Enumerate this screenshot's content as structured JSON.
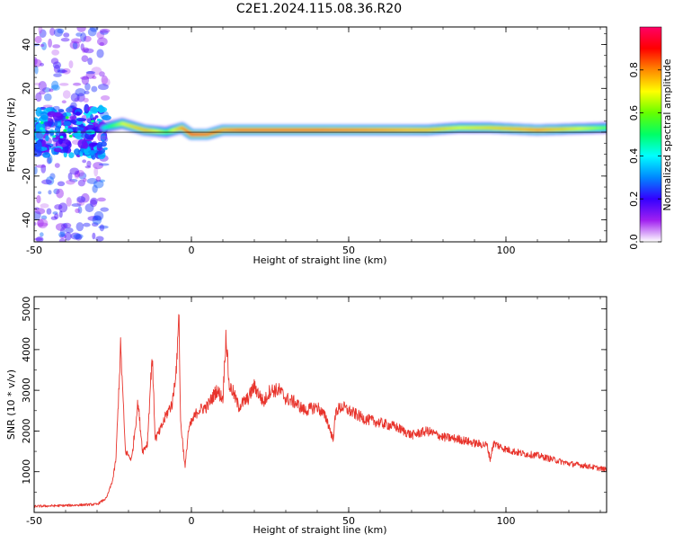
{
  "title": "C2E1.2024.115.08.36.R20",
  "chart_data": [
    {
      "type": "heatmap",
      "xlabel": "Height of straight line (km)",
      "ylabel": "Frequency (Hz)",
      "xlim": [
        -50,
        132
      ],
      "ylim": [
        -50,
        48
      ],
      "xticks": [
        -50,
        0,
        50,
        100
      ],
      "yticks": [
        40,
        20,
        0,
        -20,
        -40
      ],
      "colorbar": {
        "label": "Normalized spectral amplitude",
        "range": [
          0,
          1
        ],
        "ticks": [
          0.0,
          0.2,
          0.4,
          0.6,
          0.8
        ],
        "colors": [
          "#ffffff",
          "#a020f0",
          "#3300ff",
          "#0088ff",
          "#00ffff",
          "#00ff66",
          "#66ff00",
          "#ffff00",
          "#ff8800",
          "#ff0000",
          "#ff0066"
        ]
      },
      "ridge": {
        "x": [
          -28,
          -22,
          -15,
          -8,
          -3,
          0,
          5,
          10,
          15,
          25,
          40,
          60,
          75,
          85,
          95,
          110,
          132
        ],
        "y": [
          2,
          4,
          1,
          0,
          2,
          -1,
          -1,
          1,
          1,
          1,
          1,
          1,
          1,
          2,
          2,
          1,
          2
        ],
        "amplitude": [
          0.45,
          0.7,
          0.8,
          0.6,
          0.85,
          0.95,
          0.9,
          0.85,
          0.9,
          0.9,
          0.9,
          0.85,
          0.8,
          0.7,
          0.75,
          0.85,
          0.6
        ]
      },
      "noise_region": {
        "x": [
          -50,
          -27
        ],
        "amplitude_range": [
          0.05,
          0.3
        ]
      }
    },
    {
      "type": "line",
      "xlabel": "Height of straight line (km)",
      "ylabel": "SNR (10 * v/v)",
      "xlim": [
        -50,
        132
      ],
      "ylim": [
        0,
        5300
      ],
      "xticks": [
        -50,
        0,
        50,
        100
      ],
      "yticks": [
        1000,
        2000,
        3000,
        4000,
        5000
      ],
      "color": "#e8342c",
      "series": [
        {
          "x": [
            -50,
            -40,
            -30,
            -27,
            -25,
            -24,
            -22.5,
            -21,
            -19,
            -17,
            -15.5,
            -14,
            -12.5,
            -11.5,
            -10,
            -8,
            -6,
            -4.5,
            -4,
            -3.5,
            -2,
            -1,
            0,
            2,
            5,
            8,
            10,
            11,
            12,
            13,
            15,
            18,
            20,
            23,
            25,
            28,
            30,
            33,
            36,
            40,
            43,
            45,
            46,
            48,
            50,
            55,
            60,
            65,
            70,
            75,
            80,
            85,
            90,
            94,
            95,
            96,
            100,
            105,
            110,
            115,
            120,
            125,
            132
          ],
          "y": [
            150,
            170,
            200,
            350,
            800,
            1300,
            4100,
            1500,
            1300,
            2700,
            1500,
            1700,
            3900,
            1800,
            2000,
            2400,
            2700,
            3800,
            5200,
            2300,
            1100,
            2000,
            2200,
            2500,
            2600,
            3000,
            2800,
            4400,
            3100,
            3000,
            2600,
            2800,
            3100,
            2700,
            3000,
            3000,
            2800,
            2700,
            2500,
            2600,
            2300,
            1800,
            2500,
            2600,
            2500,
            2300,
            2200,
            2100,
            1900,
            2000,
            1850,
            1800,
            1700,
            1650,
            1300,
            1700,
            1550,
            1450,
            1400,
            1300,
            1200,
            1150,
            1050
          ]
        }
      ]
    }
  ]
}
